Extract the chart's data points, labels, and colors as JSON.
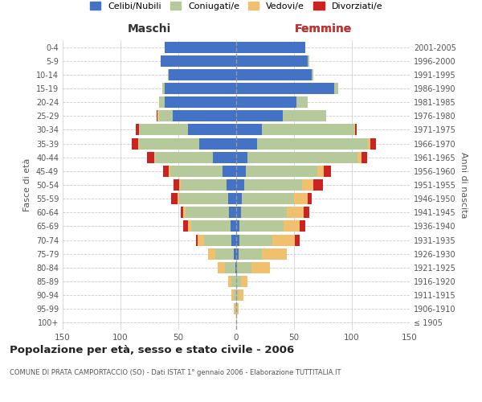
{
  "age_groups": [
    "100+",
    "95-99",
    "90-94",
    "85-89",
    "80-84",
    "75-79",
    "70-74",
    "65-69",
    "60-64",
    "55-59",
    "50-54",
    "45-49",
    "40-44",
    "35-39",
    "30-34",
    "25-29",
    "20-24",
    "15-19",
    "10-14",
    "5-9",
    "0-4"
  ],
  "birth_years": [
    "≤ 1905",
    "1906-1910",
    "1911-1915",
    "1916-1920",
    "1921-1925",
    "1926-1930",
    "1931-1935",
    "1936-1940",
    "1941-1945",
    "1946-1950",
    "1951-1955",
    "1956-1960",
    "1961-1965",
    "1966-1970",
    "1971-1975",
    "1976-1980",
    "1981-1985",
    "1986-1990",
    "1991-1995",
    "1996-2000",
    "2001-2005"
  ],
  "colors": {
    "celibi": "#4472c4",
    "coniugati": "#b5c99a",
    "vedovi": "#f0c06e",
    "divorziati": "#cc2222"
  },
  "maschi": {
    "celibi": [
      0,
      0,
      0,
      0,
      1,
      2,
      4,
      5,
      6,
      7,
      8,
      12,
      20,
      32,
      42,
      55,
      62,
      62,
      58,
      65,
      62
    ],
    "coniugati": [
      0,
      1,
      2,
      4,
      9,
      16,
      24,
      34,
      38,
      42,
      40,
      45,
      50,
      52,
      42,
      12,
      5,
      2,
      1,
      0,
      0
    ],
    "vedovi": [
      0,
      1,
      2,
      3,
      6,
      6,
      5,
      3,
      2,
      2,
      1,
      1,
      1,
      1,
      0,
      1,
      0,
      0,
      0,
      0,
      0
    ],
    "divorziati": [
      0,
      0,
      0,
      0,
      0,
      0,
      2,
      4,
      2,
      5,
      5,
      5,
      6,
      5,
      3,
      1,
      0,
      0,
      0,
      0,
      0
    ]
  },
  "femmine": {
    "nubili": [
      0,
      0,
      0,
      0,
      1,
      2,
      3,
      3,
      4,
      5,
      7,
      8,
      10,
      18,
      22,
      40,
      52,
      85,
      65,
      62,
      60
    ],
    "coniugate": [
      0,
      1,
      2,
      4,
      12,
      20,
      28,
      38,
      40,
      45,
      50,
      62,
      95,
      96,
      80,
      38,
      10,
      3,
      2,
      1,
      0
    ],
    "vedove": [
      0,
      1,
      4,
      6,
      16,
      22,
      20,
      14,
      14,
      12,
      10,
      6,
      3,
      2,
      1,
      0,
      0,
      0,
      0,
      0,
      0
    ],
    "divorziate": [
      0,
      0,
      0,
      0,
      0,
      0,
      4,
      5,
      5,
      3,
      8,
      6,
      5,
      5,
      1,
      0,
      0,
      0,
      0,
      0,
      0
    ]
  },
  "xlim": 150,
  "title": "Popolazione per età, sesso e stato civile - 2006",
  "subtitle": "COMUNE DI PRATA CAMPORTACCIO (SO) - Dati ISTAT 1° gennaio 2006 - Elaborazione TUTTITALIA.IT",
  "ylabel_left": "Fasce di età",
  "ylabel_right": "Anni di nascita",
  "label_maschi": "Maschi",
  "label_femmine": "Femmine",
  "legend_labels": [
    "Celibi/Nubili",
    "Coniugati/e",
    "Vedovi/e",
    "Divorziati/e"
  ],
  "background_color": "#ffffff",
  "grid_color": "#cccccc"
}
